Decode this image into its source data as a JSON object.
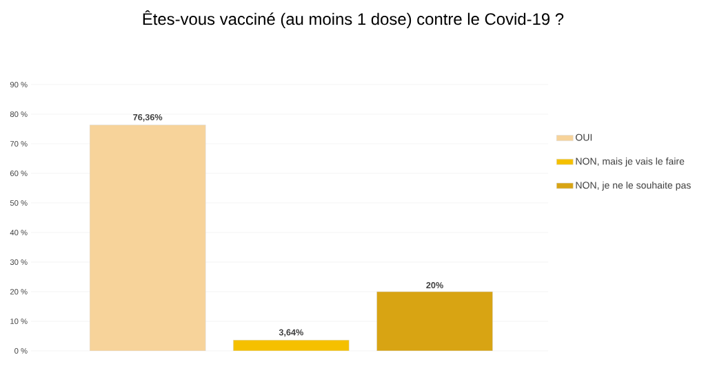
{
  "chart_data": {
    "type": "bar",
    "title": "Êtes-vous vacciné (au moins 1 dose) contre le Covid-19 ?",
    "categories": [
      null,
      null,
      null
    ],
    "series": [
      {
        "name": "OUI",
        "color": "#f7d39a",
        "values": [
          76.36,
          null,
          null
        ],
        "value_labels": [
          "76,36%",
          null,
          null
        ]
      },
      {
        "name": "NON, mais je vais le faire",
        "color": "#f5c000",
        "values": [
          null,
          3.64,
          null
        ],
        "value_labels": [
          null,
          "3,64%",
          null
        ]
      },
      {
        "name": "NON, je ne le souhaite pas",
        "color": "#d8a413",
        "values": [
          null,
          null,
          20
        ],
        "value_labels": [
          null,
          null,
          "20%"
        ]
      }
    ],
    "ylim": [
      0,
      90
    ],
    "yticks": [
      {
        "value": 0,
        "label": "0 %"
      },
      {
        "value": 10,
        "label": "10 %"
      },
      {
        "value": 20,
        "label": "20 %"
      },
      {
        "value": 30,
        "label": "30 %"
      },
      {
        "value": 40,
        "label": "40 %"
      },
      {
        "value": 50,
        "label": "50 %"
      },
      {
        "value": 60,
        "label": "60 %"
      },
      {
        "value": 70,
        "label": "70 %"
      },
      {
        "value": 80,
        "label": "80 %"
      },
      {
        "value": 90,
        "label": "90 %"
      }
    ],
    "grid": "y",
    "legend": "right"
  }
}
